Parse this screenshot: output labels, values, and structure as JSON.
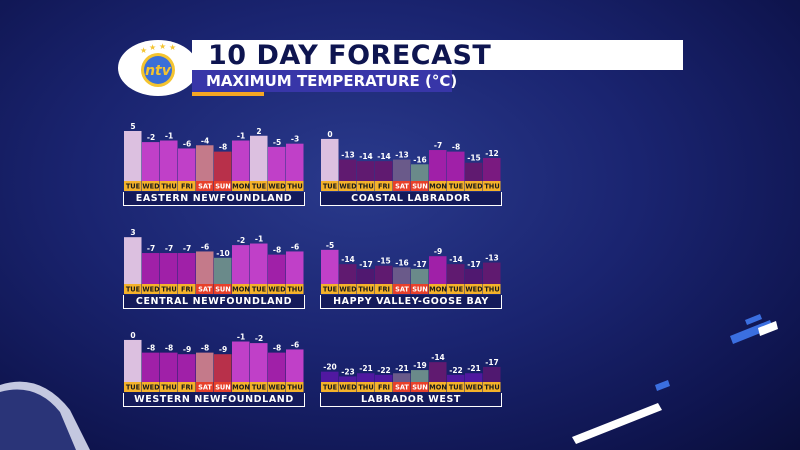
{
  "header": {
    "title": "10 DAY FORECAST",
    "subtitle": "MAXIMUM TEMPERATURE (°C)",
    "logo_text": "ntv"
  },
  "colors": {
    "day_band": "#f5b22a",
    "weekend_band": "#e8402a",
    "label_bg": "#141a5a"
  },
  "chart_data": [
    {
      "type": "bar",
      "title": "EASTERN NEWFOUNDLAND",
      "categories": [
        "TUE",
        "WED",
        "THU",
        "FRI",
        "SAT",
        "SUN",
        "MON",
        "TUE",
        "WED",
        "THU"
      ],
      "values": [
        5,
        -2,
        -1,
        -6,
        -4,
        -8,
        -1,
        2,
        -5,
        -3
      ]
    },
    {
      "type": "bar",
      "title": "COASTAL LABRADOR",
      "categories": [
        "TUE",
        "WED",
        "THU",
        "FRI",
        "SAT",
        "SUN",
        "MON",
        "TUE",
        "WED",
        "THU"
      ],
      "values": [
        0,
        -13,
        -14,
        -14,
        -13,
        -16,
        -7,
        -8,
        -15,
        -12
      ]
    },
    {
      "type": "bar",
      "title": "CENTRAL NEWFOUNDLAND",
      "categories": [
        "TUE",
        "WED",
        "THU",
        "FRI",
        "SAT",
        "SUN",
        "MON",
        "TUE",
        "WED",
        "THU"
      ],
      "values": [
        3,
        -7,
        -7,
        -7,
        -6,
        -10,
        -2,
        -1,
        -8,
        -6
      ]
    },
    {
      "type": "bar",
      "title": "HAPPY VALLEY-GOOSE BAY",
      "categories": [
        "TUE",
        "WED",
        "THU",
        "FRI",
        "SAT",
        "SUN",
        "MON",
        "TUE",
        "WED",
        "THU"
      ],
      "values": [
        -5,
        -14,
        -17,
        -15,
        -16,
        -17,
        -9,
        -14,
        -17,
        -13
      ]
    },
    {
      "type": "bar",
      "title": "WESTERN NEWFOUNDLAND",
      "categories": [
        "TUE",
        "WED",
        "THU",
        "FRI",
        "SAT",
        "SUN",
        "MON",
        "TUE",
        "WED",
        "THU"
      ],
      "values": [
        0,
        -8,
        -8,
        -9,
        -8,
        -9,
        -1,
        -2,
        -8,
        -6
      ]
    },
    {
      "type": "bar",
      "title": "LABRADOR WEST",
      "categories": [
        "TUE",
        "WED",
        "THU",
        "FRI",
        "SAT",
        "SUN",
        "MON",
        "TUE",
        "WED",
        "THU"
      ],
      "values": [
        -20,
        -23,
        -21,
        -22,
        -21,
        -19,
        -14,
        -22,
        -21,
        -17
      ]
    }
  ]
}
